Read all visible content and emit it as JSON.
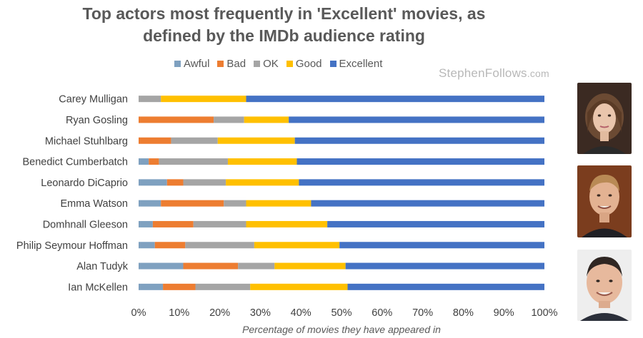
{
  "title_line1": "Top actors most frequently in 'Excellent' movies, as",
  "title_line2": "defined by the IMDb audience rating",
  "watermark": {
    "main": "StephenFollows",
    "suffix": ".com"
  },
  "colors": {
    "Awful": "#7fa1c0",
    "Bad": "#ed7d31",
    "OK": "#a5a5a5",
    "Good": "#ffc000",
    "Excellent": "#4472c4"
  },
  "chart_data": {
    "type": "bar",
    "orientation": "horizontal",
    "stacked": true,
    "title": "Top actors most frequently in 'Excellent' movies, as defined by the IMDb audience rating",
    "xlabel": "Percentage of movies they have appeared in",
    "ylabel": "",
    "xlim": [
      0,
      100
    ],
    "x_ticks": [
      "0%",
      "10%",
      "20%",
      "30%",
      "40%",
      "50%",
      "60%",
      "70%",
      "80%",
      "90%",
      "100%"
    ],
    "legend_position": "top",
    "categories": [
      "Carey Mulligan",
      "Ryan Gosling",
      "Michael Stuhlbarg",
      "Benedict Cumberbatch",
      "Leonardo DiCaprio",
      "Emma Watson",
      "Domhnall Gleeson",
      "Philip Seymour Hoffman",
      "Alan Tudyk",
      "Ian McKellen"
    ],
    "series": [
      {
        "name": "Awful",
        "values": [
          0,
          0,
          0,
          2.5,
          7,
          5.5,
          3.5,
          4,
          11,
          6
        ]
      },
      {
        "name": "Bad",
        "values": [
          0,
          18.5,
          8,
          2.5,
          4,
          15.5,
          10,
          7.5,
          13.5,
          8
        ]
      },
      {
        "name": "OK",
        "values": [
          5.5,
          7.5,
          11.5,
          17,
          10.5,
          5.5,
          13,
          17,
          9,
          13.5
        ]
      },
      {
        "name": "Good",
        "values": [
          21,
          11,
          19,
          17,
          18,
          16,
          20,
          21,
          17.5,
          24
        ]
      },
      {
        "name": "Excellent",
        "values": [
          73.5,
          63,
          61.5,
          61,
          60.5,
          57.5,
          53.5,
          50.5,
          49,
          48.5
        ]
      }
    ]
  }
}
